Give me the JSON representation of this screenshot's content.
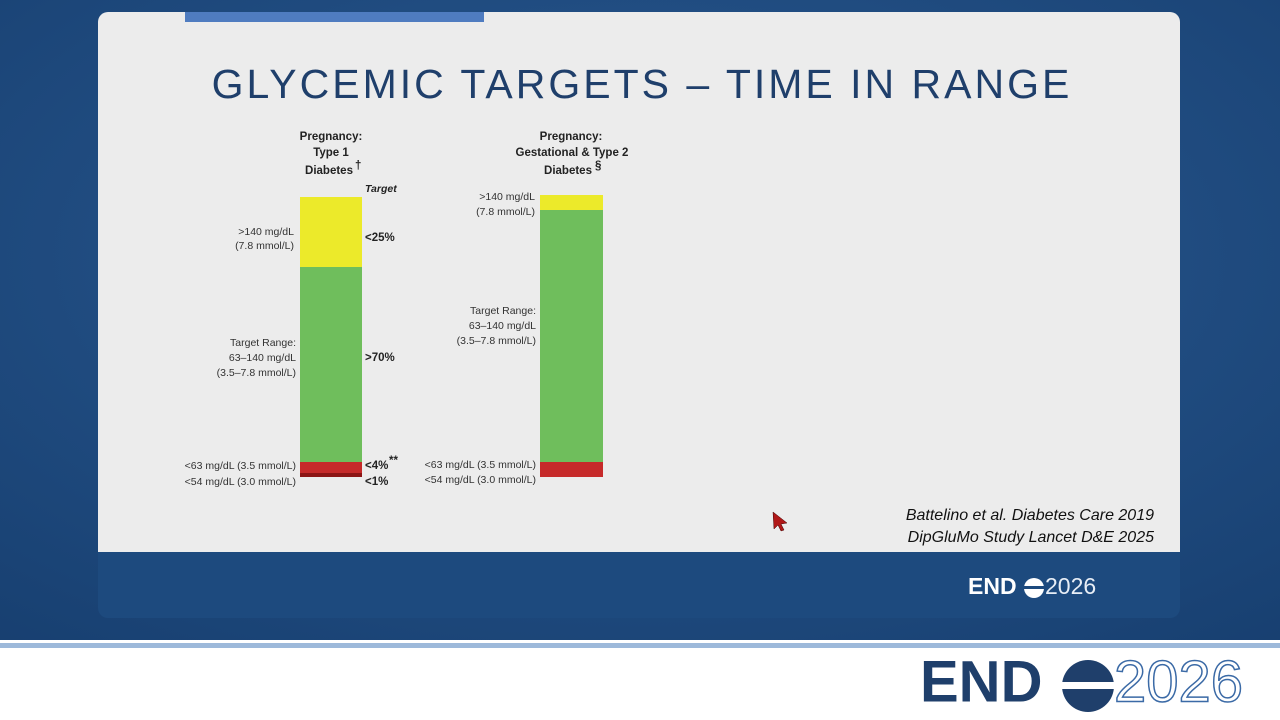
{
  "slide": {
    "title": "GLYCEMIC TARGETS – TIME IN RANGE",
    "panels": [
      {
        "heading": [
          "Pregnancy:",
          "Type 1",
          "Diabetes"
        ],
        "heading_mark": "†",
        "target_header": "Target",
        "range_labels": [
          ">140 mg/dL",
          "(7.8 mmol/L)",
          "Target Range:",
          "63–140 mg/dL",
          "(3.5–7.8 mmol/L)",
          "<63 mg/dL (3.5 mmol/L)",
          "<54 mg/dL (3.0 mmol/L)"
        ],
        "targets": [
          "<25%",
          ">70%",
          "<4%",
          "<1%"
        ],
        "target_note": "**"
      },
      {
        "heading": [
          "Pregnancy:",
          "Gestational & Type 2",
          "Diabetes"
        ],
        "heading_mark": "§",
        "range_labels": [
          ">140 mg/dL",
          "(7.8 mmol/L)",
          "Target Range:",
          "63–140 mg/dL",
          "(3.5–7.8 mmol/L)",
          "<63 mg/dL (3.5 mmol/L)",
          "<54 mg/dL (3.0 mmol/L)"
        ]
      }
    ],
    "references": [
      "Battelino et al. Diabetes Care 2019",
      "DipGluMo Study Lancet D&E 2025"
    ]
  },
  "footer": {
    "logo_small": {
      "name": "END",
      "year": "2026"
    },
    "logo_large": {
      "name": "END",
      "year": "2026"
    }
  }
}
